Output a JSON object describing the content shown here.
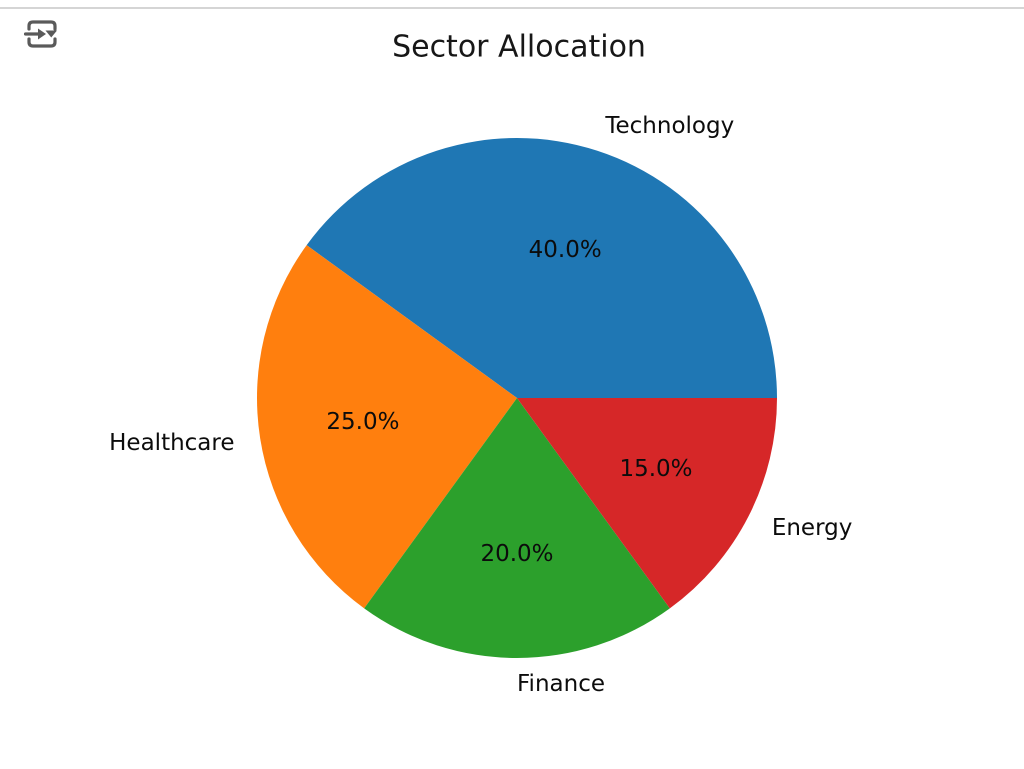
{
  "page": {
    "background": "#ffffff",
    "divider_color": "#d5d5d5"
  },
  "toolbar": {
    "icon": "run-cell-dropdown-icon",
    "icon_color": "#5a5a5a"
  },
  "chart_data": {
    "type": "pie",
    "title": "Sector Allocation",
    "categories": [
      "Technology",
      "Healthcare",
      "Finance",
      "Energy"
    ],
    "values": [
      40.0,
      25.0,
      20.0,
      15.0
    ],
    "slices": [
      {
        "label": "Technology",
        "value": 40.0,
        "percent_label": "40.0%",
        "color": "#1f77b4"
      },
      {
        "label": "Healthcare",
        "value": 25.0,
        "percent_label": "25.0%",
        "color": "#ff7f0e"
      },
      {
        "label": "Finance",
        "value": 20.0,
        "percent_label": "20.0%",
        "color": "#2ca02c"
      },
      {
        "label": "Energy",
        "value": 15.0,
        "percent_label": "15.0%",
        "color": "#d62728"
      }
    ],
    "start_angle": 0,
    "direction": "counterclockwise",
    "legend": false,
    "text_color": "#000000"
  }
}
